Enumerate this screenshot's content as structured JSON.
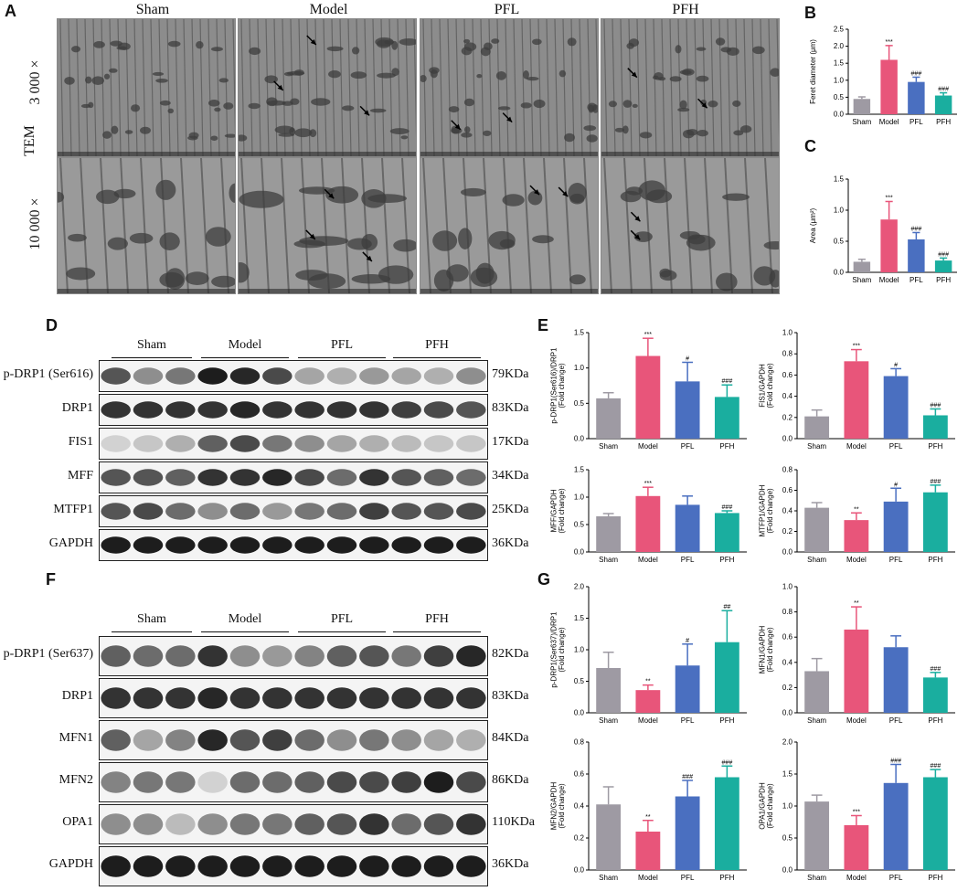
{
  "panels": {
    "A": "A",
    "B": "B",
    "C": "C",
    "D": "D",
    "E": "E",
    "F": "F",
    "G": "G"
  },
  "tem": {
    "label": "TEM",
    "groups": [
      "Sham",
      "Model",
      "PFL",
      "PFH"
    ],
    "mags": [
      "3 000 ×",
      "10 000 ×"
    ]
  },
  "colors": {
    "Sham": "#9e9aa3",
    "Model": "#e8557a",
    "PFL": "#4a6fc0",
    "PFH": "#1aae9f"
  },
  "blot_D": {
    "groups": [
      "Sham",
      "Model",
      "PFL",
      "PFH"
    ],
    "rows": [
      {
        "name": "p-DRP1 (Ser616)",
        "kda": "79KDa"
      },
      {
        "name": "DRP1",
        "kda": "83KDa"
      },
      {
        "name": "FIS1",
        "kda": "17KDa"
      },
      {
        "name": "MFF",
        "kda": "34KDa"
      },
      {
        "name": "MTFP1",
        "kda": "25KDa"
      },
      {
        "name": "GAPDH",
        "kda": "36KDa"
      }
    ]
  },
  "blot_F": {
    "groups": [
      "Sham",
      "Model",
      "PFL",
      "PFH"
    ],
    "rows": [
      {
        "name": "p-DRP1 (Ser637)",
        "kda": "82KDa"
      },
      {
        "name": "DRP1",
        "kda": "83KDa"
      },
      {
        "name": "MFN1",
        "kda": "84KDa"
      },
      {
        "name": "MFN2",
        "kda": "86KDa"
      },
      {
        "name": "OPA1",
        "kda": "110KDa"
      },
      {
        "name": "GAPDH",
        "kda": "36KDa"
      }
    ]
  },
  "chart_data": [
    {
      "id": "B",
      "type": "bar",
      "categories": [
        "Sham",
        "Model",
        "PFL",
        "PFH"
      ],
      "values": [
        0.45,
        1.6,
        0.95,
        0.55
      ],
      "errors": [
        0.06,
        0.42,
        0.14,
        0.08
      ],
      "sig": [
        "",
        "***",
        "###",
        "###"
      ],
      "ylabel": "Feret diameter (μm)",
      "ylim": [
        0,
        2.5
      ],
      "ticks": [
        0.0,
        0.5,
        1.0,
        1.5,
        2.0,
        2.5
      ]
    },
    {
      "id": "C",
      "type": "bar",
      "categories": [
        "Sham",
        "Model",
        "PFL",
        "PFH"
      ],
      "values": [
        0.17,
        0.85,
        0.53,
        0.19
      ],
      "errors": [
        0.04,
        0.29,
        0.11,
        0.04
      ],
      "sig": [
        "",
        "***",
        "###",
        "###"
      ],
      "ylabel": "Area (μm²)",
      "ylim": [
        0,
        1.5
      ],
      "ticks": [
        0.0,
        0.5,
        1.0,
        1.5
      ]
    },
    {
      "id": "E1",
      "type": "bar",
      "categories": [
        "Sham",
        "Model",
        "PFL",
        "PFH"
      ],
      "values": [
        0.57,
        1.17,
        0.81,
        0.59
      ],
      "errors": [
        0.08,
        0.25,
        0.27,
        0.17
      ],
      "sig": [
        "",
        "***",
        "#",
        "###"
      ],
      "ylabel": "p-DRP1(Ser616)/DRP1 (Fold change)",
      "ylim": [
        0,
        1.5
      ],
      "ticks": [
        0.0,
        0.5,
        1.0,
        1.5
      ]
    },
    {
      "id": "E2",
      "type": "bar",
      "categories": [
        "Sham",
        "Model",
        "PFL",
        "PFH"
      ],
      "values": [
        0.21,
        0.73,
        0.59,
        0.22
      ],
      "errors": [
        0.06,
        0.11,
        0.07,
        0.06
      ],
      "sig": [
        "",
        "***",
        "#",
        "###"
      ],
      "ylabel": "FIS1/GAPDH (Fold change)",
      "ylim": [
        0,
        1.0
      ],
      "ticks": [
        0.0,
        0.2,
        0.4,
        0.6,
        0.8,
        1.0
      ]
    },
    {
      "id": "E3",
      "type": "bar",
      "categories": [
        "Sham",
        "Model",
        "PFL",
        "PFH"
      ],
      "values": [
        0.65,
        1.02,
        0.86,
        0.71
      ],
      "errors": [
        0.05,
        0.16,
        0.16,
        0.04
      ],
      "sig": [
        "",
        "***",
        "",
        "###"
      ],
      "ylabel": "MFF/GAPDH (Fold change)",
      "ylim": [
        0,
        1.5
      ],
      "ticks": [
        0.0,
        0.5,
        1.0,
        1.5
      ]
    },
    {
      "id": "E4",
      "type": "bar",
      "categories": [
        "Sham",
        "Model",
        "PFL",
        "PFH"
      ],
      "values": [
        0.43,
        0.31,
        0.49,
        0.58
      ],
      "errors": [
        0.05,
        0.07,
        0.13,
        0.07
      ],
      "sig": [
        "",
        "**",
        "#",
        "###"
      ],
      "ylabel": "MTFP1/GAPDH (Fold change)",
      "ylim": [
        0,
        0.8
      ],
      "ticks": [
        0.0,
        0.2,
        0.4,
        0.6,
        0.8
      ]
    },
    {
      "id": "G1",
      "type": "bar",
      "categories": [
        "Sham",
        "Model",
        "PFL",
        "PFH"
      ],
      "values": [
        0.71,
        0.36,
        0.75,
        1.12
      ],
      "errors": [
        0.25,
        0.08,
        0.34,
        0.5
      ],
      "sig": [
        "",
        "**",
        "#",
        "##"
      ],
      "ylabel": "p-DRP1(Ser637)/DRP1 (Fold change)",
      "ylim": [
        0,
        2.0
      ],
      "ticks": [
        0.0,
        0.5,
        1.0,
        1.5,
        2.0
      ]
    },
    {
      "id": "G2",
      "type": "bar",
      "categories": [
        "Sham",
        "Model",
        "PFL",
        "PFH"
      ],
      "values": [
        0.33,
        0.66,
        0.52,
        0.28
      ],
      "errors": [
        0.1,
        0.18,
        0.09,
        0.04
      ],
      "sig": [
        "",
        "**",
        "",
        "###"
      ],
      "ylabel": "MFN1/GAPDH (Fold change)",
      "ylim": [
        0,
        1.0
      ],
      "ticks": [
        0.0,
        0.2,
        0.4,
        0.6,
        0.8,
        1.0
      ]
    },
    {
      "id": "G3",
      "type": "bar",
      "categories": [
        "Sham",
        "Model",
        "PFL",
        "PFH"
      ],
      "values": [
        0.41,
        0.24,
        0.46,
        0.58
      ],
      "errors": [
        0.11,
        0.07,
        0.1,
        0.07
      ],
      "sig": [
        "",
        "**",
        "###",
        "###"
      ],
      "ylabel": "MFN2/GAPDH (Fold change)",
      "ylim": [
        0,
        0.8
      ],
      "ticks": [
        0.0,
        0.2,
        0.4,
        0.6,
        0.8
      ]
    },
    {
      "id": "G4",
      "type": "bar",
      "categories": [
        "Sham",
        "Model",
        "PFL",
        "PFH"
      ],
      "values": [
        1.07,
        0.7,
        1.36,
        1.45
      ],
      "errors": [
        0.1,
        0.15,
        0.29,
        0.12
      ],
      "sig": [
        "",
        "***",
        "###",
        "###"
      ],
      "ylabel": "OPA1/GAPDH (Fold change)",
      "ylim": [
        0,
        2.0
      ],
      "ticks": [
        0.0,
        0.5,
        1.0,
        1.5,
        2.0
      ]
    }
  ]
}
